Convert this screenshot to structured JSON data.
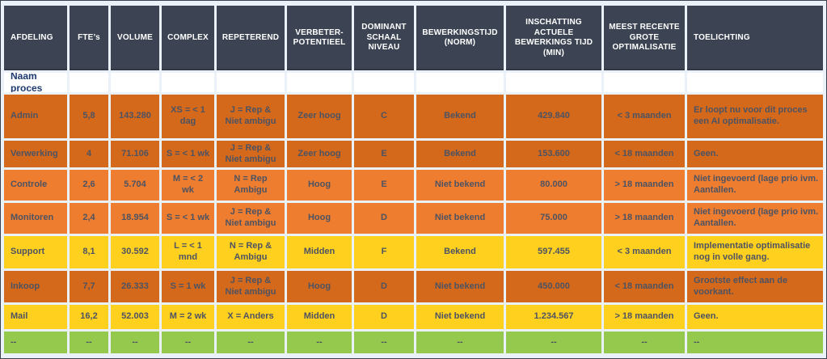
{
  "colors": {
    "header_bg": "#3C4454",
    "header_text": "#FFFFFF",
    "subheader_text": "#1E3A6E",
    "row_text": "#4D5362",
    "orange_dark": "#D4691B",
    "orange_light": "#EE7D2F",
    "yellow": "#FFD01E",
    "green": "#95C94E",
    "gap_bg": "#EAF1F9",
    "frame_border": "#3A414F"
  },
  "table": {
    "columns": [
      {
        "key": "afdeling",
        "label": "AFDELING"
      },
      {
        "key": "ftes",
        "label": "FTE’s"
      },
      {
        "key": "volume",
        "label": "VOLUME"
      },
      {
        "key": "complex",
        "label": "COMPLEX"
      },
      {
        "key": "repeterend",
        "label": "REPETEREND"
      },
      {
        "key": "verbeterpotentieel",
        "label": "VERBETER-POTENTIEEL"
      },
      {
        "key": "dominant-schaalniveau",
        "label": "DOMINANT SCHAAL NIVEAU"
      },
      {
        "key": "bewerkingstijd-norm",
        "label": "BEWERKINGSTIJD (NORM)"
      },
      {
        "key": "inschatting-actuele-bewerkingstijd",
        "label": "INSCHATTING ACTUELE BEWERKINGS TIJD (MIN)"
      },
      {
        "key": "meest-recente-grote-optimalisatie",
        "label": "MEEST RECENTE GROTE OPTIMALISATIE"
      },
      {
        "key": "toelichting",
        "label": "TOELICHTING"
      }
    ],
    "subheader": {
      "label": "Naam proces"
    },
    "rows": [
      {
        "name": "admin",
        "color": "orange-dark",
        "cells": [
          "Admin",
          "5,8",
          "143.280",
          "XS = < 1 dag",
          "J = Rep & Niet ambigu",
          "Zeer hoog",
          "C",
          "Bekend",
          "429.840",
          "< 3 maanden",
          "Er loopt nu voor dit proces een AI optimalisatie."
        ]
      },
      {
        "name": "verwerking",
        "color": "orange-dark",
        "cells": [
          "Verwerking",
          "4",
          "71.106",
          "S = < 1 wk",
          "J = Rep & Niet ambigu",
          "Zeer hoog",
          "E",
          "Bekend",
          "153.600",
          "< 18 maanden",
          "Geen."
        ]
      },
      {
        "name": "controle",
        "color": "orange-light",
        "cells": [
          "Controle",
          "2,6",
          "5.704",
          "M = < 2 wk",
          "N = Rep Ambigu",
          "Hoog",
          "E",
          "Niet bekend",
          "80.000",
          "> 18 maanden",
          "Niet ingevoerd (lage prio ivm. Aantallen."
        ]
      },
      {
        "name": "monitoren",
        "color": "orange-light",
        "cells": [
          "Monitoren",
          "2,4",
          "18.954",
          "S = < 1 wk",
          "J = Rep & Niet ambigu",
          "Hoog",
          "D",
          "Niet bekend",
          "75.000",
          "> 18 maanden",
          "Niet ingevoerd (lage prio ivm. Aantallen."
        ]
      },
      {
        "name": "support",
        "color": "yellow",
        "cells": [
          "Support",
          "8,1",
          "30.592",
          "L = < 1 mnd",
          "N = Rep & Ambigu",
          "Midden",
          "F",
          "Bekend",
          "597.455",
          "< 3 maanden",
          "Implementatie optimalisatie nog in volle gang."
        ]
      },
      {
        "name": "inkoop",
        "color": "orange-dark",
        "cells": [
          "Inkoop",
          "7,7",
          "26.333",
          "S = 1 wk",
          "J = Rep & Niet ambigu",
          "Hoog",
          "D",
          "Niet bekend",
          "450.000",
          "< 18 maanden",
          "Grootste effect aan de voorkant."
        ]
      },
      {
        "name": "mail",
        "color": "yellow",
        "cells": [
          "Mail",
          "16,2",
          "52.003",
          "M = 2 wk",
          "X = Anders",
          "Midden",
          "D",
          "Niet bekend",
          "1.234.567",
          "> 18 maanden",
          "Geen."
        ]
      },
      {
        "name": "empty",
        "color": "green",
        "cells": [
          "--",
          "--",
          "--",
          "--",
          "--",
          "--",
          "--",
          "--",
          "--",
          "--",
          "--"
        ]
      }
    ]
  }
}
